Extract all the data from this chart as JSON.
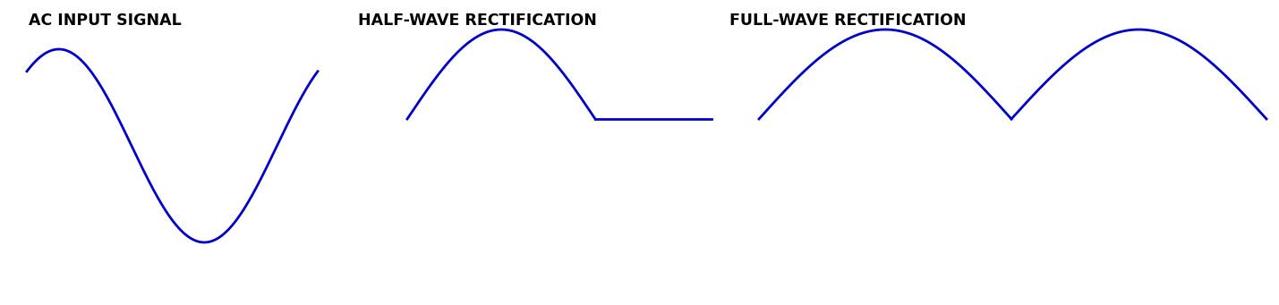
{
  "title1": "AC INPUT SIGNAL",
  "title2": "HALF-WAVE RECTIFICATION",
  "title3": "FULL-WAVE RECTIFICATION",
  "line_color": "#0000CC",
  "line_width": 2.0,
  "bg_color": "#FFFFFF",
  "title_fontsize": 12.5,
  "title_fontweight": "bold",
  "fig_width": 14.29,
  "fig_height": 3.41
}
